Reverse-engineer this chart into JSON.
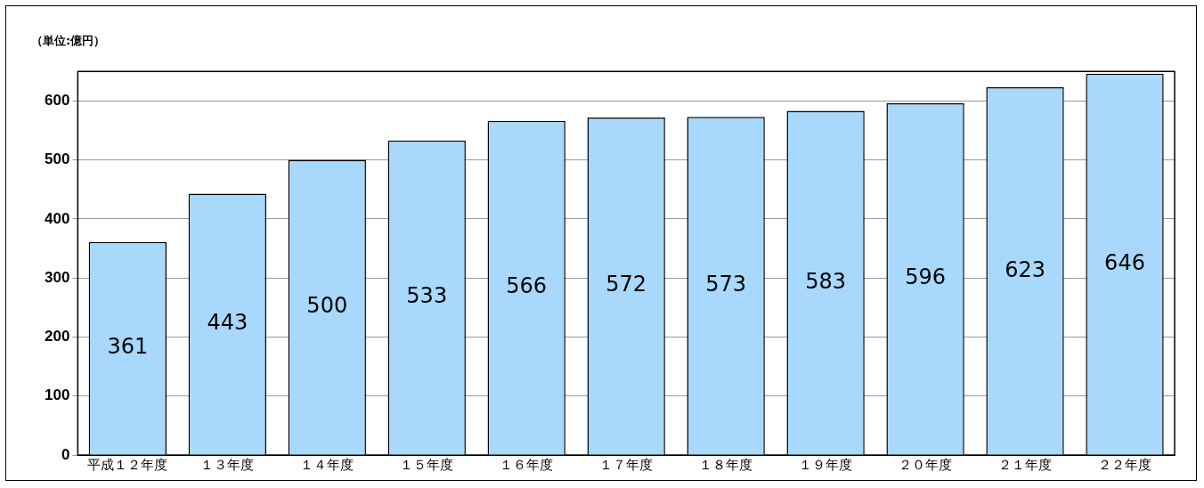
{
  "chart_data": {
    "type": "bar",
    "ylabel": "（単位:億円）",
    "categories": [
      "平成１２年度",
      "１３年度",
      "１４年度",
      "１５年度",
      "１６年度",
      "１７年度",
      "１８年度",
      "１９年度",
      "２０年度",
      "２１年度",
      "２２年度"
    ],
    "values": [
      361,
      443,
      500,
      533,
      566,
      572,
      573,
      583,
      596,
      623,
      646
    ],
    "color": "#a8d8fb",
    "ylim": [
      0,
      650
    ],
    "yticks": [
      0,
      100,
      200,
      300,
      400,
      500,
      600
    ],
    "grid": "y",
    "data_labels": true
  }
}
